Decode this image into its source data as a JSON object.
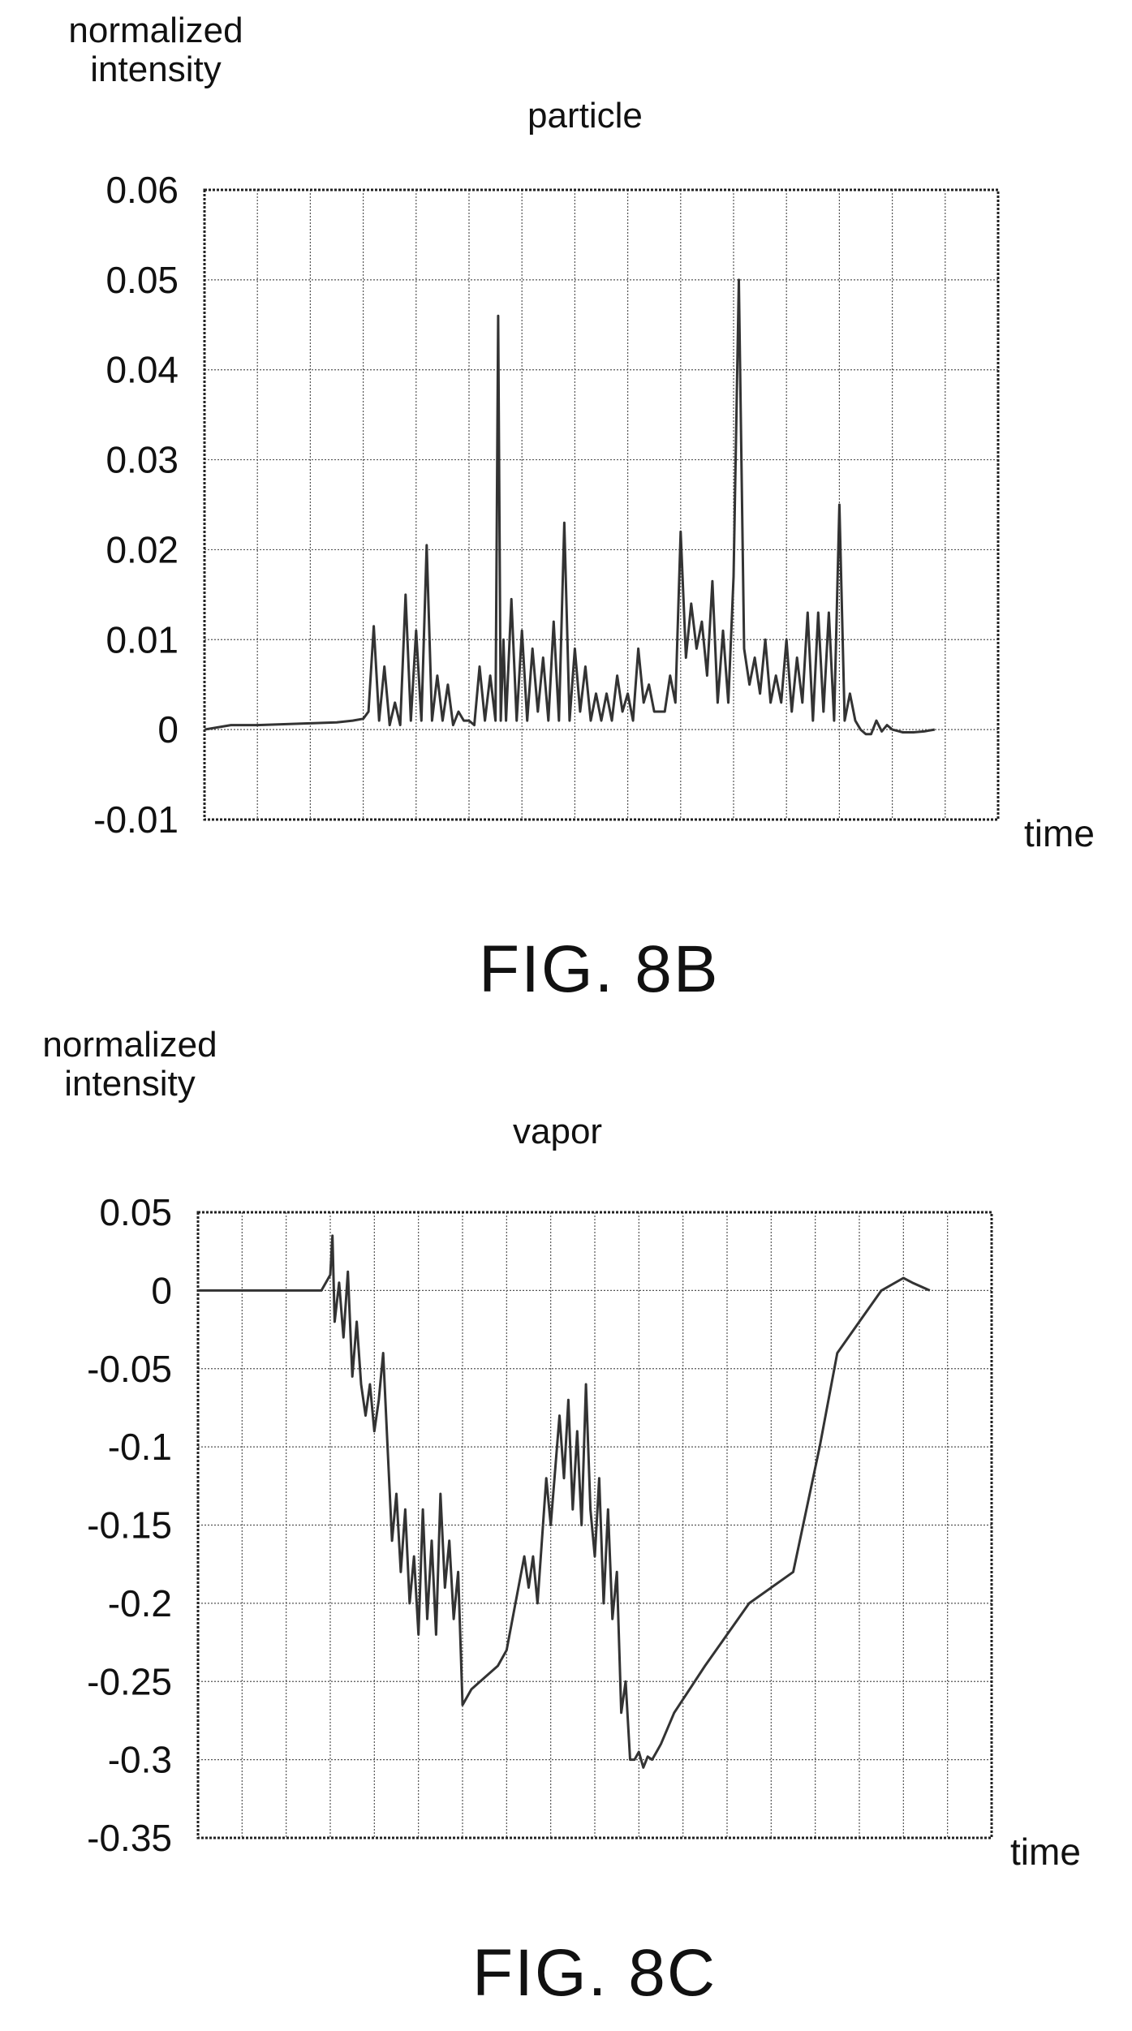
{
  "chart_data": [
    {
      "type": "line",
      "figure_label": "FIG. 8B",
      "title": "particle",
      "ylabel": "normalized intensity",
      "xlabel": "time",
      "ylim": [
        -0.01,
        0.06
      ],
      "yticks": [
        "0.06",
        "0.05",
        "0.04",
        "0.03",
        "0.02",
        "0.01",
        "0",
        "-0.01"
      ],
      "ytick_values": [
        0.06,
        0.05,
        0.04,
        0.03,
        0.02,
        0.01,
        0,
        -0.01
      ],
      "xlim": [
        0,
        15
      ],
      "grid": true,
      "series": [
        {
          "x": [
            0,
            0.5,
            1,
            1.5,
            2,
            2.5,
            2.8,
            3,
            3.1,
            3.2,
            3.3,
            3.4,
            3.5,
            3.6,
            3.7,
            3.8,
            3.9,
            4,
            4.1,
            4.2,
            4.3,
            4.4,
            4.5,
            4.6,
            4.7,
            4.8,
            4.9,
            5,
            5.1,
            5.2,
            5.3,
            5.4,
            5.5,
            5.55,
            5.6,
            5.65,
            5.7,
            5.8,
            5.9,
            6,
            6.1,
            6.2,
            6.3,
            6.4,
            6.5,
            6.6,
            6.7,
            6.8,
            6.9,
            7,
            7.1,
            7.2,
            7.3,
            7.4,
            7.5,
            7.6,
            7.7,
            7.8,
            7.9,
            8,
            8.1,
            8.2,
            8.3,
            8.4,
            8.5,
            8.6,
            8.7,
            8.8,
            8.9,
            9,
            9.1,
            9.2,
            9.3,
            9.4,
            9.5,
            9.6,
            9.7,
            9.8,
            9.9,
            10,
            10.1,
            10.2,
            10.3,
            10.4,
            10.5,
            10.6,
            10.7,
            10.8,
            10.9,
            11,
            11.1,
            11.2,
            11.3,
            11.4,
            11.5,
            11.6,
            11.7,
            11.8,
            11.9,
            12,
            12.1,
            12.2,
            12.3,
            12.4,
            12.5,
            12.6,
            12.7,
            12.8,
            12.9,
            13,
            13.2,
            13.4,
            13.6,
            13.8
          ],
          "y": [
            0,
            0.0005,
            0.0005,
            0.0006,
            0.0007,
            0.0008,
            0.001,
            0.0012,
            0.002,
            0.0115,
            0.001,
            0.007,
            0.0005,
            0.003,
            0.0005,
            0.015,
            0.001,
            0.011,
            0.001,
            0.0205,
            0.001,
            0.006,
            0.001,
            0.005,
            0.0005,
            0.002,
            0.001,
            0.001,
            0.0005,
            0.007,
            0.001,
            0.006,
            0.001,
            0.046,
            0.001,
            0.01,
            0.001,
            0.0145,
            0.001,
            0.011,
            0.001,
            0.009,
            0.002,
            0.008,
            0.001,
            0.012,
            0.001,
            0.023,
            0.001,
            0.009,
            0.002,
            0.007,
            0.001,
            0.004,
            0.001,
            0.004,
            0.001,
            0.006,
            0.002,
            0.004,
            0.001,
            0.009,
            0.003,
            0.005,
            0.002,
            0.002,
            0.002,
            0.006,
            0.003,
            0.022,
            0.008,
            0.014,
            0.009,
            0.012,
            0.006,
            0.0165,
            0.003,
            0.011,
            0.003,
            0.017,
            0.05,
            0.009,
            0.005,
            0.008,
            0.004,
            0.01,
            0.003,
            0.006,
            0.003,
            0.01,
            0.002,
            0.008,
            0.003,
            0.013,
            0.001,
            0.013,
            0.002,
            0.013,
            0.001,
            0.025,
            0.001,
            0.004,
            0.001,
            0,
            -0.0005,
            -0.0005,
            0.001,
            -0.0002,
            0.0005,
            0,
            -0.0003,
            -0.0003,
            -0.0002,
            0
          ]
        }
      ]
    },
    {
      "type": "line",
      "figure_label": "FIG. 8C",
      "title": "vapor",
      "ylabel": "normalized intensity",
      "xlabel": "time",
      "ylim": [
        -0.35,
        0.05
      ],
      "yticks": [
        "0.05",
        "0",
        "-0.05",
        "-0.1",
        "-0.15",
        "-0.2",
        "-0.25",
        "-0.3",
        "-0.35"
      ],
      "ytick_values": [
        0.05,
        0,
        -0.05,
        -0.1,
        -0.15,
        -0.2,
        -0.25,
        -0.3,
        -0.35
      ],
      "xlim": [
        0,
        18
      ],
      "grid": true,
      "series": [
        {
          "x": [
            0,
            1,
            2,
            2.8,
            3,
            3.05,
            3.1,
            3.2,
            3.3,
            3.4,
            3.5,
            3.6,
            3.7,
            3.8,
            3.9,
            4,
            4.1,
            4.2,
            4.3,
            4.4,
            4.5,
            4.6,
            4.7,
            4.8,
            4.9,
            5,
            5.1,
            5.2,
            5.3,
            5.4,
            5.5,
            5.6,
            5.7,
            5.8,
            5.9,
            6,
            6.2,
            6.4,
            6.6,
            6.8,
            7,
            7.2,
            7.4,
            7.5,
            7.6,
            7.7,
            7.8,
            7.9,
            8,
            8.2,
            8.3,
            8.4,
            8.5,
            8.6,
            8.7,
            8.8,
            8.9,
            9,
            9.1,
            9.2,
            9.3,
            9.4,
            9.5,
            9.6,
            9.7,
            9.8,
            9.9,
            10,
            10.1,
            10.2,
            10.3,
            10.4,
            10.5,
            10.8,
            11.5,
            12.5,
            13.5,
            14.1,
            14.5,
            15,
            15.5,
            16,
            16.2,
            16.6
          ],
          "y": [
            0,
            0,
            0,
            0,
            0.01,
            0.035,
            -0.02,
            0.005,
            -0.03,
            0.012,
            -0.055,
            -0.02,
            -0.06,
            -0.08,
            -0.06,
            -0.09,
            -0.07,
            -0.04,
            -0.1,
            -0.16,
            -0.13,
            -0.18,
            -0.14,
            -0.2,
            -0.17,
            -0.22,
            -0.14,
            -0.21,
            -0.16,
            -0.22,
            -0.13,
            -0.19,
            -0.16,
            -0.21,
            -0.18,
            -0.265,
            -0.255,
            -0.25,
            -0.245,
            -0.24,
            -0.23,
            -0.2,
            -0.17,
            -0.19,
            -0.17,
            -0.2,
            -0.16,
            -0.12,
            -0.15,
            -0.08,
            -0.12,
            -0.07,
            -0.14,
            -0.09,
            -0.15,
            -0.06,
            -0.14,
            -0.17,
            -0.12,
            -0.2,
            -0.14,
            -0.21,
            -0.18,
            -0.27,
            -0.25,
            -0.3,
            -0.3,
            -0.295,
            -0.305,
            -0.298,
            -0.3,
            -0.295,
            -0.29,
            -0.27,
            -0.24,
            -0.2,
            -0.18,
            -0.1,
            -0.04,
            -0.02,
            0,
            0.008,
            0.005,
            0
          ]
        }
      ]
    }
  ]
}
